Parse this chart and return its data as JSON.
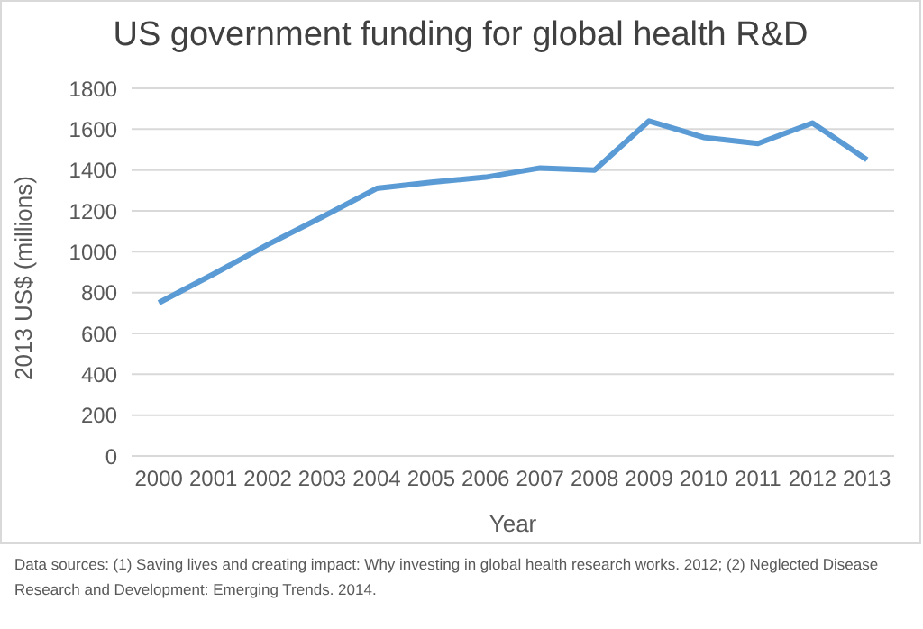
{
  "chart_data": {
    "type": "line",
    "title": "US government funding for global health R&D",
    "xlabel": "Year",
    "ylabel": "2013 US$ (millions)",
    "categories": [
      "2000",
      "2001",
      "2002",
      "2003",
      "2004",
      "2005",
      "2006",
      "2007",
      "2008",
      "2009",
      "2010",
      "2011",
      "2012",
      "2013"
    ],
    "series": [
      {
        "color": "#5b9bd5",
        "values": [
          750,
          890,
          1035,
          1170,
          1310,
          1340,
          1365,
          1410,
          1400,
          1640,
          1560,
          1530,
          1630,
          1450
        ]
      }
    ],
    "ylim": [
      0,
      1800
    ],
    "yticks": [
      0,
      200,
      400,
      600,
      800,
      1000,
      1200,
      1400,
      1600,
      1800
    ],
    "grid": "y",
    "marker": "none",
    "line_style": "solid",
    "annotations": [
      "Data sources: (1) Saving lives and creating impact: Why investing in global health research works. 2012; (2) Neglected Disease Research and Development: Emerging Trends. 2014."
    ]
  }
}
